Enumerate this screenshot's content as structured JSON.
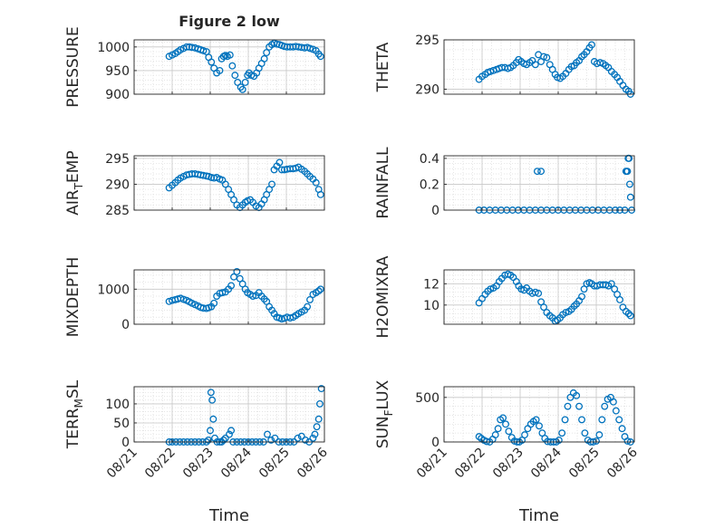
{
  "figure": {
    "title": "Figure 2 low"
  },
  "colors": {
    "marker": "#0072BD",
    "axis": "#262626",
    "grid": "#c8c8c8",
    "background": "#ffffff"
  },
  "chart_data": [
    {
      "type": "scatter",
      "ylabel": "PRESSURE",
      "ylim": [
        900,
        1015
      ],
      "yticks": [
        900,
        950,
        1000
      ],
      "xlim": [
        0,
        5
      ],
      "xticks": [
        "08/21",
        "08/22",
        "08/23",
        "08/24",
        "08/25",
        "08/26"
      ],
      "grid": true,
      "series": [
        {
          "x": [
            0.92,
            1.0,
            1.08,
            1.15,
            1.22,
            1.3,
            1.38,
            1.45,
            1.52,
            1.6,
            1.68,
            1.75,
            1.82,
            1.9,
            1.96,
            2.03,
            2.1,
            2.17,
            2.25,
            2.3,
            2.35,
            2.4,
            2.45,
            2.52,
            2.58,
            2.65,
            2.72,
            2.8,
            2.85,
            2.92,
            2.98,
            3.02,
            3.08,
            3.15,
            3.22,
            3.28,
            3.35,
            3.42,
            3.48,
            3.55,
            3.62,
            3.68,
            3.75,
            3.82,
            3.88,
            3.95,
            4.02,
            4.1,
            4.18,
            4.25,
            4.32,
            4.4,
            4.48,
            4.55,
            4.62,
            4.7,
            4.78,
            4.85,
            4.9
          ],
          "y": [
            980,
            983,
            986,
            990,
            994,
            997,
            1000,
            1000,
            999,
            998,
            996,
            994,
            992,
            990,
            978,
            968,
            955,
            945,
            950,
            975,
            980,
            982,
            980,
            983,
            960,
            940,
            925,
            915,
            910,
            925,
            940,
            945,
            940,
            938,
            945,
            955,
            965,
            975,
            988,
            1000,
            1005,
            1008,
            1006,
            1005,
            1003,
            1001,
            1000,
            1000,
            1000,
            1001,
            1000,
            999,
            998,
            999,
            997,
            995,
            992,
            985,
            980
          ]
        }
      ]
    },
    {
      "type": "scatter",
      "ylabel": "THETA",
      "ylim": [
        289.5,
        295
      ],
      "yticks": [
        290,
        295
      ],
      "xlim": [
        0,
        5
      ],
      "xticks": [
        "08/21",
        "08/22",
        "08/23",
        "08/24",
        "08/25",
        "08/26"
      ],
      "grid": true,
      "series": [
        {
          "x": [
            0.92,
            1.0,
            1.08,
            1.15,
            1.22,
            1.3,
            1.38,
            1.45,
            1.52,
            1.6,
            1.68,
            1.75,
            1.82,
            1.9,
            1.96,
            2.03,
            2.1,
            2.17,
            2.25,
            2.32,
            2.4,
            2.48,
            2.55,
            2.62,
            2.7,
            2.78,
            2.85,
            2.92,
            2.98,
            3.05,
            3.12,
            3.2,
            3.28,
            3.35,
            3.42,
            3.48,
            3.55,
            3.62,
            3.68,
            3.75,
            3.82,
            3.88,
            3.95,
            4.02,
            4.1,
            4.18,
            4.25,
            4.32,
            4.4,
            4.48,
            4.55,
            4.62,
            4.7,
            4.78,
            4.85,
            4.9
          ],
          "y": [
            291,
            291.3,
            291.5,
            291.7,
            291.8,
            291.9,
            292,
            292.1,
            292.2,
            292.2,
            292.1,
            292.2,
            292.4,
            292.7,
            293,
            292.8,
            292.6,
            292.5,
            292.7,
            292.9,
            292.5,
            293.5,
            292.8,
            293.3,
            293.2,
            292.5,
            292,
            291.5,
            291.2,
            291.1,
            291.3,
            291.6,
            292,
            292.3,
            292.4,
            292.7,
            292.9,
            293.3,
            293.5,
            293.8,
            294.2,
            294.5,
            292.8,
            292.6,
            292.7,
            292.6,
            292.4,
            292.2,
            291.8,
            291.5,
            291.2,
            290.8,
            290.4,
            290,
            289.8,
            289.5
          ]
        }
      ]
    },
    {
      "type": "scatter",
      "ylabel": "AIR_TEMP",
      "ylim": [
        285,
        295.5
      ],
      "yticks": [
        285,
        290,
        295
      ],
      "xlim": [
        0,
        5
      ],
      "xticks": [
        "08/21",
        "08/22",
        "08/23",
        "08/24",
        "08/25",
        "08/26"
      ],
      "grid": true,
      "series": [
        {
          "x": [
            0.92,
            1.0,
            1.08,
            1.15,
            1.22,
            1.3,
            1.38,
            1.45,
            1.52,
            1.6,
            1.68,
            1.75,
            1.82,
            1.9,
            1.96,
            2.03,
            2.1,
            2.17,
            2.25,
            2.32,
            2.4,
            2.48,
            2.55,
            2.62,
            2.7,
            2.78,
            2.85,
            2.92,
            2.98,
            3.05,
            3.12,
            3.2,
            3.28,
            3.35,
            3.42,
            3.48,
            3.55,
            3.62,
            3.68,
            3.75,
            3.82,
            3.88,
            3.95,
            4.02,
            4.1,
            4.18,
            4.25,
            4.32,
            4.4,
            4.48,
            4.55,
            4.62,
            4.7,
            4.78,
            4.85,
            4.9
          ],
          "y": [
            289.3,
            289.8,
            290.3,
            290.8,
            291.2,
            291.5,
            291.8,
            291.9,
            292,
            292,
            291.9,
            291.8,
            291.7,
            291.6,
            291.5,
            291.3,
            291.2,
            291.3,
            291,
            290.8,
            290,
            289,
            288,
            287,
            286,
            285.5,
            286,
            286.5,
            286.8,
            287,
            286.5,
            285.8,
            285.5,
            286.2,
            287,
            288,
            289,
            290,
            292.8,
            293.5,
            294.2,
            292.8,
            292.8,
            292.9,
            293,
            293,
            293.1,
            293.3,
            292.9,
            292.5,
            292,
            291.5,
            291,
            290.3,
            289,
            288
          ]
        }
      ]
    },
    {
      "type": "scatter",
      "ylabel": "RAINFALL",
      "ylim": [
        0,
        0.42
      ],
      "yticks": [
        0,
        0.2,
        0.4
      ],
      "xlim": [
        0,
        5
      ],
      "xticks": [
        "08/21",
        "08/22",
        "08/23",
        "08/24",
        "08/25",
        "08/26"
      ],
      "grid": true,
      "series": [
        {
          "x": [
            0.92,
            1.05,
            1.2,
            1.35,
            1.5,
            1.65,
            1.8,
            1.95,
            2.1,
            2.25,
            2.4,
            2.55,
            2.7,
            2.85,
            3.0,
            3.15,
            3.3,
            3.45,
            3.6,
            3.75,
            3.9,
            4.05,
            4.2,
            4.35,
            4.5,
            4.62,
            4.75,
            4.78,
            4.82,
            4.85,
            4.86,
            4.88,
            4.9,
            4.93,
            2.45,
            2.55,
            4.8,
            4.84
          ],
          "y": [
            0,
            0,
            0,
            0,
            0,
            0,
            0,
            0,
            0,
            0,
            0,
            0,
            0,
            0,
            0,
            0,
            0,
            0,
            0,
            0,
            0,
            0,
            0,
            0,
            0,
            0,
            0,
            0.3,
            0.3,
            0.4,
            0.4,
            0.2,
            0.1,
            0,
            0.3,
            0.3,
            0.3,
            0.4
          ]
        }
      ]
    },
    {
      "type": "scatter",
      "ylabel": "MIXDEPTH",
      "ylim": [
        0,
        1550
      ],
      "yticks": [
        0,
        1000
      ],
      "xlim": [
        0,
        5
      ],
      "xticks": [
        "08/21",
        "08/22",
        "08/23",
        "08/24",
        "08/25",
        "08/26"
      ],
      "grid": true,
      "series": [
        {
          "x": [
            0.92,
            1.0,
            1.08,
            1.15,
            1.22,
            1.3,
            1.38,
            1.45,
            1.52,
            1.6,
            1.68,
            1.75,
            1.82,
            1.9,
            1.96,
            2.03,
            2.1,
            2.17,
            2.25,
            2.32,
            2.4,
            2.48,
            2.55,
            2.62,
            2.7,
            2.78,
            2.85,
            2.92,
            2.98,
            3.05,
            3.12,
            3.2,
            3.28,
            3.35,
            3.42,
            3.48,
            3.55,
            3.62,
            3.68,
            3.75,
            3.82,
            3.88,
            3.95,
            4.02,
            4.1,
            4.18,
            4.25,
            4.32,
            4.4,
            4.48,
            4.55,
            4.62,
            4.7,
            4.78,
            4.85,
            4.9
          ],
          "y": [
            650,
            680,
            700,
            720,
            740,
            710,
            680,
            640,
            600,
            560,
            520,
            480,
            460,
            450,
            470,
            500,
            600,
            800,
            880,
            900,
            920,
            1000,
            1100,
            1350,
            1500,
            1300,
            1150,
            1000,
            900,
            850,
            800,
            820,
            900,
            800,
            720,
            650,
            500,
            400,
            300,
            200,
            180,
            150,
            170,
            200,
            180,
            200,
            250,
            300,
            350,
            400,
            500,
            700,
            850,
            900,
            950,
            1000
          ]
        }
      ]
    },
    {
      "type": "scatter",
      "ylabel": "H2OMIXRA",
      "ylim": [
        8.2,
        13.3
      ],
      "yticks": [
        10,
        12
      ],
      "xlim": [
        0,
        5
      ],
      "xticks": [
        "08/21",
        "08/22",
        "08/23",
        "08/24",
        "08/25",
        "08/26"
      ],
      "grid": true,
      "series": [
        {
          "x": [
            0.92,
            1.0,
            1.08,
            1.15,
            1.22,
            1.3,
            1.38,
            1.45,
            1.52,
            1.6,
            1.68,
            1.75,
            1.82,
            1.9,
            1.96,
            2.03,
            2.1,
            2.17,
            2.25,
            2.32,
            2.4,
            2.48,
            2.55,
            2.62,
            2.7,
            2.78,
            2.85,
            2.92,
            2.98,
            3.05,
            3.12,
            3.2,
            3.28,
            3.35,
            3.42,
            3.48,
            3.55,
            3.62,
            3.68,
            3.75,
            3.82,
            3.88,
            3.95,
            4.02,
            4.1,
            4.18,
            4.25,
            4.32,
            4.4,
            4.48,
            4.55,
            4.62,
            4.7,
            4.78,
            4.85,
            4.9
          ],
          "y": [
            10.2,
            10.6,
            11,
            11.3,
            11.5,
            11.6,
            11.8,
            12.2,
            12.5,
            12.8,
            12.9,
            12.8,
            12.6,
            12.2,
            11.8,
            11.5,
            11.4,
            11.6,
            11.3,
            11.1,
            11.2,
            11.1,
            10.3,
            9.8,
            9.3,
            9.0,
            8.8,
            8.5,
            8.6,
            8.8,
            9.1,
            9.3,
            9.4,
            9.6,
            9.9,
            10.1,
            10.4,
            10.8,
            11.5,
            12,
            12.1,
            12.0,
            11.8,
            11.8,
            11.9,
            11.9,
            11.9,
            11.8,
            12.0,
            11.5,
            11.0,
            10.5,
            9.8,
            9.4,
            9.2,
            9.0
          ]
        }
      ]
    },
    {
      "type": "scatter",
      "ylabel": "TERR_MSL",
      "ylim": [
        0,
        145
      ],
      "yticks": [
        0,
        50,
        100
      ],
      "xlim": [
        0,
        5
      ],
      "xticks": [
        "08/21",
        "08/22",
        "08/23",
        "08/24",
        "08/25",
        "08/26"
      ],
      "grid": true,
      "series": [
        {
          "x": [
            0.92,
            1.0,
            1.1,
            1.2,
            1.3,
            1.4,
            1.5,
            1.6,
            1.7,
            1.8,
            1.9,
            1.95,
            2.0,
            2.02,
            2.05,
            2.08,
            2.12,
            2.18,
            2.25,
            2.3,
            2.35,
            2.4,
            2.5,
            2.55,
            2.6,
            2.7,
            2.8,
            2.9,
            3.0,
            3.1,
            3.2,
            3.3,
            3.4,
            3.5,
            3.6,
            3.7,
            3.8,
            3.9,
            4.0,
            4.1,
            4.2,
            4.3,
            4.4,
            4.5,
            4.6,
            4.7,
            4.75,
            4.8,
            4.85,
            4.88,
            4.92
          ],
          "y": [
            0,
            0,
            0,
            0,
            0,
            0,
            0,
            0,
            0,
            0,
            0,
            5,
            30,
            130,
            110,
            60,
            10,
            0,
            0,
            0,
            5,
            10,
            20,
            30,
            0,
            0,
            0,
            0,
            0,
            0,
            0,
            0,
            0,
            20,
            5,
            10,
            0,
            0,
            0,
            0,
            0,
            10,
            15,
            5,
            0,
            10,
            20,
            40,
            60,
            100,
            140
          ]
        }
      ]
    },
    {
      "type": "scatter",
      "ylabel": "SUN_FLUX",
      "ylim": [
        0,
        620
      ],
      "yticks": [
        0,
        500
      ],
      "xlim": [
        0,
        5
      ],
      "xticks": [
        "08/21",
        "08/22",
        "08/23",
        "08/24",
        "08/25",
        "08/26"
      ],
      "grid": true,
      "series": [
        {
          "x": [
            0.92,
            0.98,
            1.05,
            1.12,
            1.2,
            1.28,
            1.35,
            1.42,
            1.48,
            1.55,
            1.62,
            1.7,
            1.78,
            1.85,
            1.92,
            1.98,
            2.05,
            2.12,
            2.2,
            2.28,
            2.35,
            2.42,
            2.5,
            2.58,
            2.65,
            2.72,
            2.8,
            2.88,
            2.95,
            3.02,
            3.1,
            3.18,
            3.25,
            3.32,
            3.4,
            3.48,
            3.55,
            3.62,
            3.7,
            3.78,
            3.85,
            3.92,
            4.0,
            4.08,
            4.15,
            4.22,
            4.3,
            4.38,
            4.45,
            4.52,
            4.6,
            4.68,
            4.75,
            4.82,
            4.9
          ],
          "y": [
            60,
            40,
            20,
            5,
            0,
            30,
            80,
            150,
            250,
            270,
            200,
            120,
            50,
            10,
            0,
            0,
            20,
            80,
            150,
            200,
            230,
            250,
            180,
            100,
            40,
            5,
            0,
            0,
            0,
            20,
            100,
            250,
            400,
            500,
            550,
            520,
            400,
            250,
            100,
            20,
            0,
            0,
            10,
            80,
            250,
            400,
            480,
            500,
            450,
            350,
            250,
            150,
            60,
            10,
            0
          ]
        }
      ]
    }
  ],
  "xlabels": [
    "Time",
    "Time"
  ]
}
